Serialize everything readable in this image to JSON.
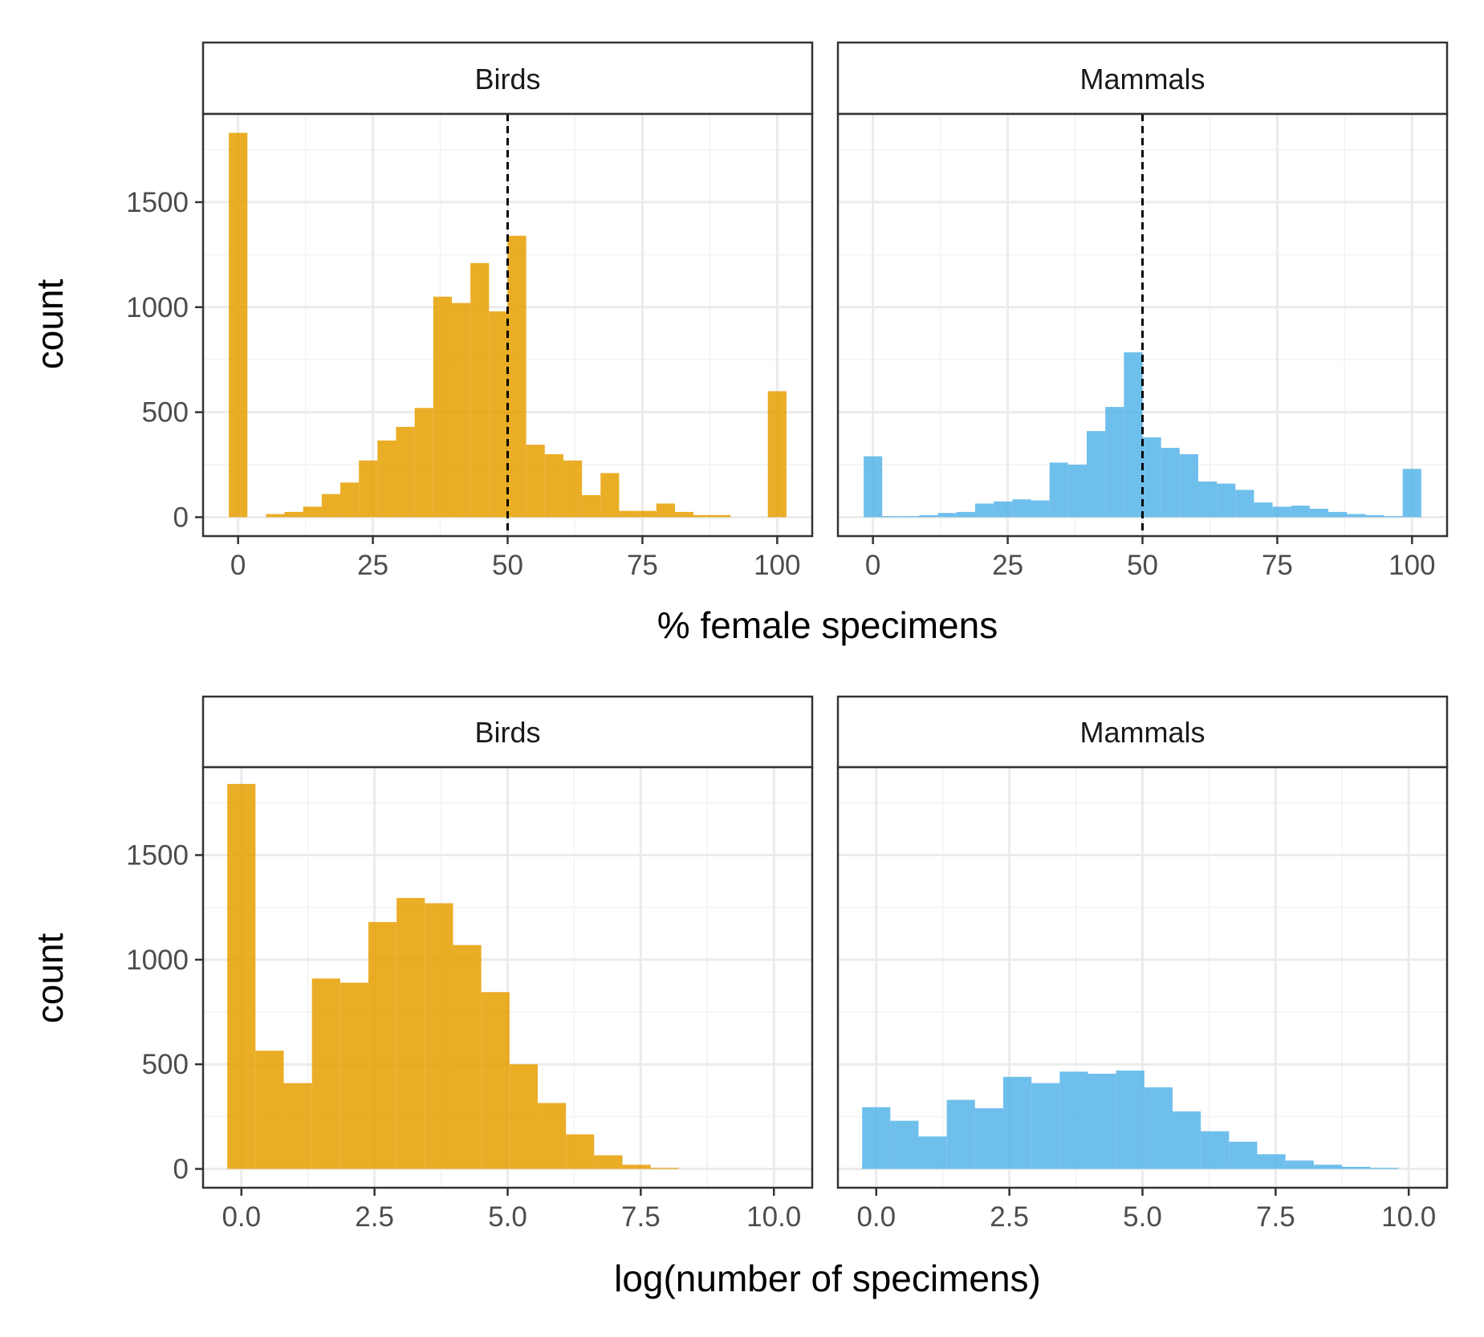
{
  "colors": {
    "birds": "#E69F00",
    "mammals": "#56B4E9",
    "grid_major": "#EBEBEB",
    "grid_minor": "#F2F2F2",
    "panel_border": "#333333",
    "reference_line": "#000000"
  },
  "chart_data": [
    {
      "type": "bar",
      "xlabel": "% female specimens",
      "ylabel": "count",
      "xlim": [
        -6.5,
        106.5
      ],
      "ylim": [
        -90,
        1920
      ],
      "x_ticks": [
        0,
        25,
        50,
        75,
        100
      ],
      "x_tick_labels": [
        "0",
        "25",
        "50",
        "75",
        "100"
      ],
      "y_ticks": [
        0,
        500,
        1000,
        1500
      ],
      "y_tick_labels": [
        "0",
        "500",
        "1000",
        "1500"
      ],
      "bin_start": -1.724,
      "bin_width": 3.448,
      "reference_line_x": 50,
      "facets": [
        {
          "label": "Birds",
          "color_key": "birds",
          "counts": [
            1830,
            0,
            15,
            25,
            50,
            110,
            165,
            270,
            365,
            430,
            520,
            1050,
            1020,
            1210,
            980,
            1340,
            345,
            300,
            270,
            105,
            210,
            30,
            30,
            65,
            25,
            10,
            10,
            0,
            0,
            600
          ]
        },
        {
          "label": "Mammals",
          "color_key": "mammals",
          "counts": [
            290,
            5,
            5,
            10,
            20,
            25,
            65,
            75,
            85,
            80,
            260,
            250,
            410,
            525,
            785,
            380,
            330,
            300,
            170,
            160,
            130,
            70,
            50,
            55,
            40,
            25,
            15,
            10,
            5,
            230
          ]
        }
      ]
    },
    {
      "type": "bar",
      "xlabel": "log(number of specimens)",
      "ylabel": "count",
      "xlim": [
        -0.72,
        10.72
      ],
      "ylim": [
        -90,
        1920
      ],
      "x_ticks": [
        0,
        2.5,
        5,
        7.5,
        10
      ],
      "x_tick_labels": [
        "0.0",
        "2.5",
        "5.0",
        "7.5",
        "10.0"
      ],
      "y_ticks": [
        0,
        500,
        1000,
        1500
      ],
      "y_tick_labels": [
        "0",
        "500",
        "1000",
        "1500"
      ],
      "bin_start": -0.265,
      "bin_width": 0.53,
      "facets": [
        {
          "label": "Birds",
          "color_key": "birds",
          "counts": [
            1840,
            565,
            410,
            910,
            890,
            1180,
            1295,
            1270,
            1070,
            845,
            500,
            315,
            165,
            65,
            20,
            5,
            0,
            0,
            0,
            0
          ]
        },
        {
          "label": "Mammals",
          "color_key": "mammals",
          "counts": [
            295,
            230,
            155,
            330,
            290,
            440,
            410,
            465,
            455,
            470,
            390,
            275,
            180,
            130,
            70,
            40,
            20,
            10,
            5,
            0
          ]
        }
      ]
    }
  ]
}
